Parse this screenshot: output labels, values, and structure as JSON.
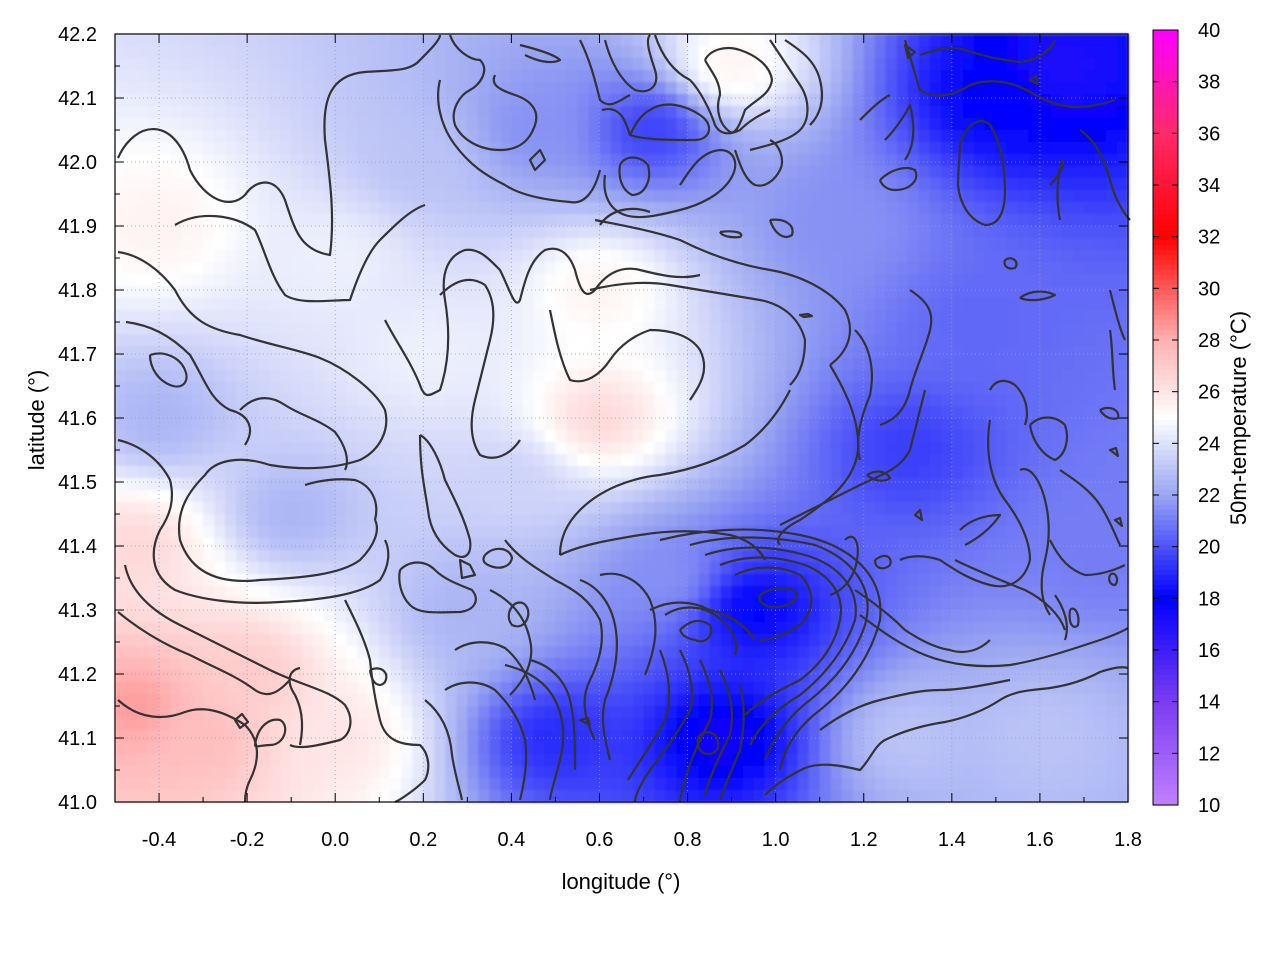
{
  "chart_data": {
    "type": "heatmap",
    "title": "",
    "xlabel": "longitude (°)",
    "ylabel": "latitude (°)",
    "colorbar_label": "50m-temperature (°C)",
    "xlim": [
      -0.5,
      1.8
    ],
    "ylim": [
      41.0,
      42.2
    ],
    "x_ticks": [
      "-0.4",
      "-0.2",
      "0.0",
      "0.2",
      "0.4",
      "0.6",
      "0.8",
      "1.0",
      "1.2",
      "1.4",
      "1.6",
      "1.8"
    ],
    "x_tick_values": [
      -0.4,
      -0.2,
      0.0,
      0.2,
      0.4,
      0.6,
      0.8,
      1.0,
      1.2,
      1.4,
      1.6,
      1.8
    ],
    "y_ticks": [
      "41.0",
      "41.1",
      "41.2",
      "41.3",
      "41.4",
      "41.5",
      "41.6",
      "41.7",
      "41.8",
      "41.9",
      "42.0",
      "42.1",
      "42.2"
    ],
    "y_tick_values": [
      41.0,
      41.1,
      41.2,
      41.3,
      41.4,
      41.5,
      41.6,
      41.7,
      41.8,
      41.9,
      42.0,
      42.1,
      42.2
    ],
    "colorbar_range": [
      10,
      40
    ],
    "colorbar_ticks": [
      "10",
      "12",
      "14",
      "16",
      "18",
      "20",
      "22",
      "24",
      "26",
      "28",
      "30",
      "32",
      "34",
      "36",
      "38",
      "40"
    ],
    "colorbar_tick_values": [
      10,
      12,
      14,
      16,
      18,
      20,
      22,
      24,
      26,
      28,
      30,
      32,
      34,
      36,
      38,
      40
    ],
    "colormap": [
      {
        "value": 10,
        "color": "#c080ff"
      },
      {
        "value": 14,
        "color": "#7a3cf0"
      },
      {
        "value": 18,
        "color": "#0000ff"
      },
      {
        "value": 22,
        "color": "#9aa6f2"
      },
      {
        "value": 25,
        "color": "#ffffff"
      },
      {
        "value": 28,
        "color": "#ffb0b0"
      },
      {
        "value": 32,
        "color": "#ff0000"
      },
      {
        "value": 36,
        "color": "#ff2a6a"
      },
      {
        "value": 40,
        "color": "#ff00ff"
      }
    ],
    "grid": true,
    "field_samples": [
      {
        "lon": -0.45,
        "lat": 41.15,
        "t": 28.5
      },
      {
        "lon": -0.3,
        "lat": 41.1,
        "t": 27.5
      },
      {
        "lon": -0.45,
        "lat": 41.4,
        "t": 26.5
      },
      {
        "lon": -0.2,
        "lat": 41.2,
        "t": 27
      },
      {
        "lon": 0.0,
        "lat": 41.1,
        "t": 26
      },
      {
        "lon": -0.4,
        "lat": 41.9,
        "t": 25.5
      },
      {
        "lon": -0.4,
        "lat": 41.6,
        "t": 22.5
      },
      {
        "lon": -0.1,
        "lat": 41.45,
        "t": 22.5
      },
      {
        "lon": 0.0,
        "lat": 41.85,
        "t": 24.5
      },
      {
        "lon": 0.2,
        "lat": 41.7,
        "t": 24.5
      },
      {
        "lon": 0.6,
        "lat": 41.6,
        "t": 26.5
      },
      {
        "lon": 0.6,
        "lat": 41.8,
        "t": 25.5
      },
      {
        "lon": 0.4,
        "lat": 41.5,
        "t": 23.5
      },
      {
        "lon": 0.45,
        "lat": 42.05,
        "t": 21.5
      },
      {
        "lon": 0.72,
        "lat": 42.05,
        "t": 19.5
      },
      {
        "lon": 0.9,
        "lat": 42.15,
        "t": 25.5
      },
      {
        "lon": 0.2,
        "lat": 42.0,
        "t": 23
      },
      {
        "lon": 0.5,
        "lat": 41.1,
        "t": 19
      },
      {
        "lon": 0.3,
        "lat": 41.3,
        "t": 22.5
      },
      {
        "lon": 0.75,
        "lat": 41.35,
        "t": 21.5
      },
      {
        "lon": 0.88,
        "lat": 41.1,
        "t": 17.5
      },
      {
        "lon": 0.95,
        "lat": 41.3,
        "t": 18
      },
      {
        "lon": 1.3,
        "lat": 41.55,
        "t": 19.5
      },
      {
        "lon": 1.45,
        "lat": 41.75,
        "t": 20.5
      },
      {
        "lon": 1.5,
        "lat": 42.1,
        "t": 18
      },
      {
        "lon": 1.65,
        "lat": 42.15,
        "t": 17
      },
      {
        "lon": 1.15,
        "lat": 41.9,
        "t": 21.5
      },
      {
        "lon": 1.3,
        "lat": 41.1,
        "t": 23
      },
      {
        "lon": 1.6,
        "lat": 41.1,
        "t": 23
      },
      {
        "lon": 1.75,
        "lat": 41.4,
        "t": 21
      }
    ]
  }
}
